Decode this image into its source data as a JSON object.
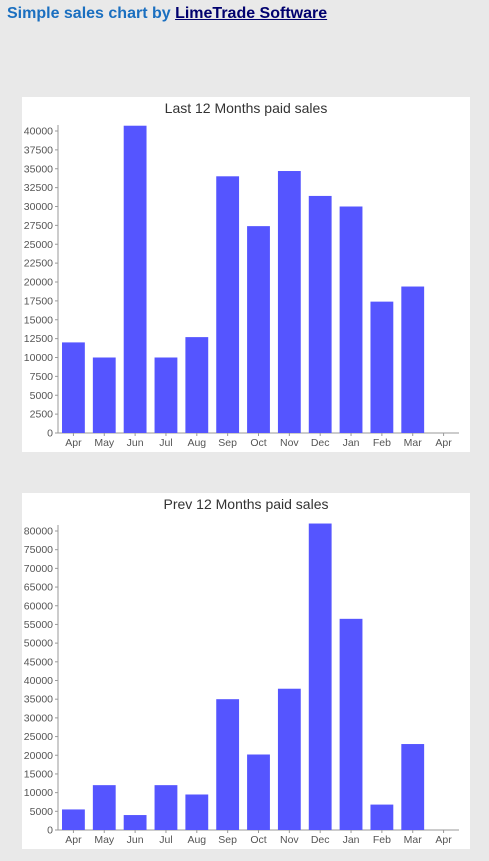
{
  "header": {
    "prefix": "Simple sales chart by ",
    "link_text": "LimeTrade Software"
  },
  "colors": {
    "background": "#e9e9e9",
    "bar": "#5555ff",
    "header_text": "#1a6fc0",
    "link": "#00006e"
  },
  "chart_data": [
    {
      "type": "bar",
      "title": "Last 12 Months paid sales",
      "xlabel": "",
      "ylabel": "",
      "categories": [
        "Apr",
        "May",
        "Jun",
        "Jul",
        "Aug",
        "Sep",
        "Oct",
        "Nov",
        "Dec",
        "Jan",
        "Feb",
        "Mar",
        "Apr"
      ],
      "values": [
        12000,
        10000,
        40700,
        10000,
        12700,
        34000,
        27400,
        34700,
        31400,
        30000,
        17400,
        19400,
        0
      ],
      "ylim": [
        0,
        40000
      ],
      "yticks": [
        0,
        2500,
        5000,
        7500,
        10000,
        12500,
        15000,
        17500,
        20000,
        22500,
        25000,
        27500,
        30000,
        32500,
        35000,
        37500,
        40000
      ],
      "grid": false,
      "legend": "none"
    },
    {
      "type": "bar",
      "title": "Prev 12 Months paid sales",
      "xlabel": "",
      "ylabel": "",
      "categories": [
        "Apr",
        "May",
        "Jun",
        "Jul",
        "Aug",
        "Sep",
        "Oct",
        "Nov",
        "Dec",
        "Jan",
        "Feb",
        "Mar",
        "Apr"
      ],
      "values": [
        5500,
        12000,
        4000,
        12000,
        9500,
        35000,
        20200,
        37800,
        82000,
        56500,
        6800,
        23000,
        0
      ],
      "ylim": [
        0,
        80000
      ],
      "yticks": [
        0,
        5000,
        10000,
        15000,
        20000,
        25000,
        30000,
        35000,
        40000,
        45000,
        50000,
        55000,
        60000,
        65000,
        70000,
        75000,
        80000
      ],
      "grid": false,
      "legend": "none"
    }
  ]
}
